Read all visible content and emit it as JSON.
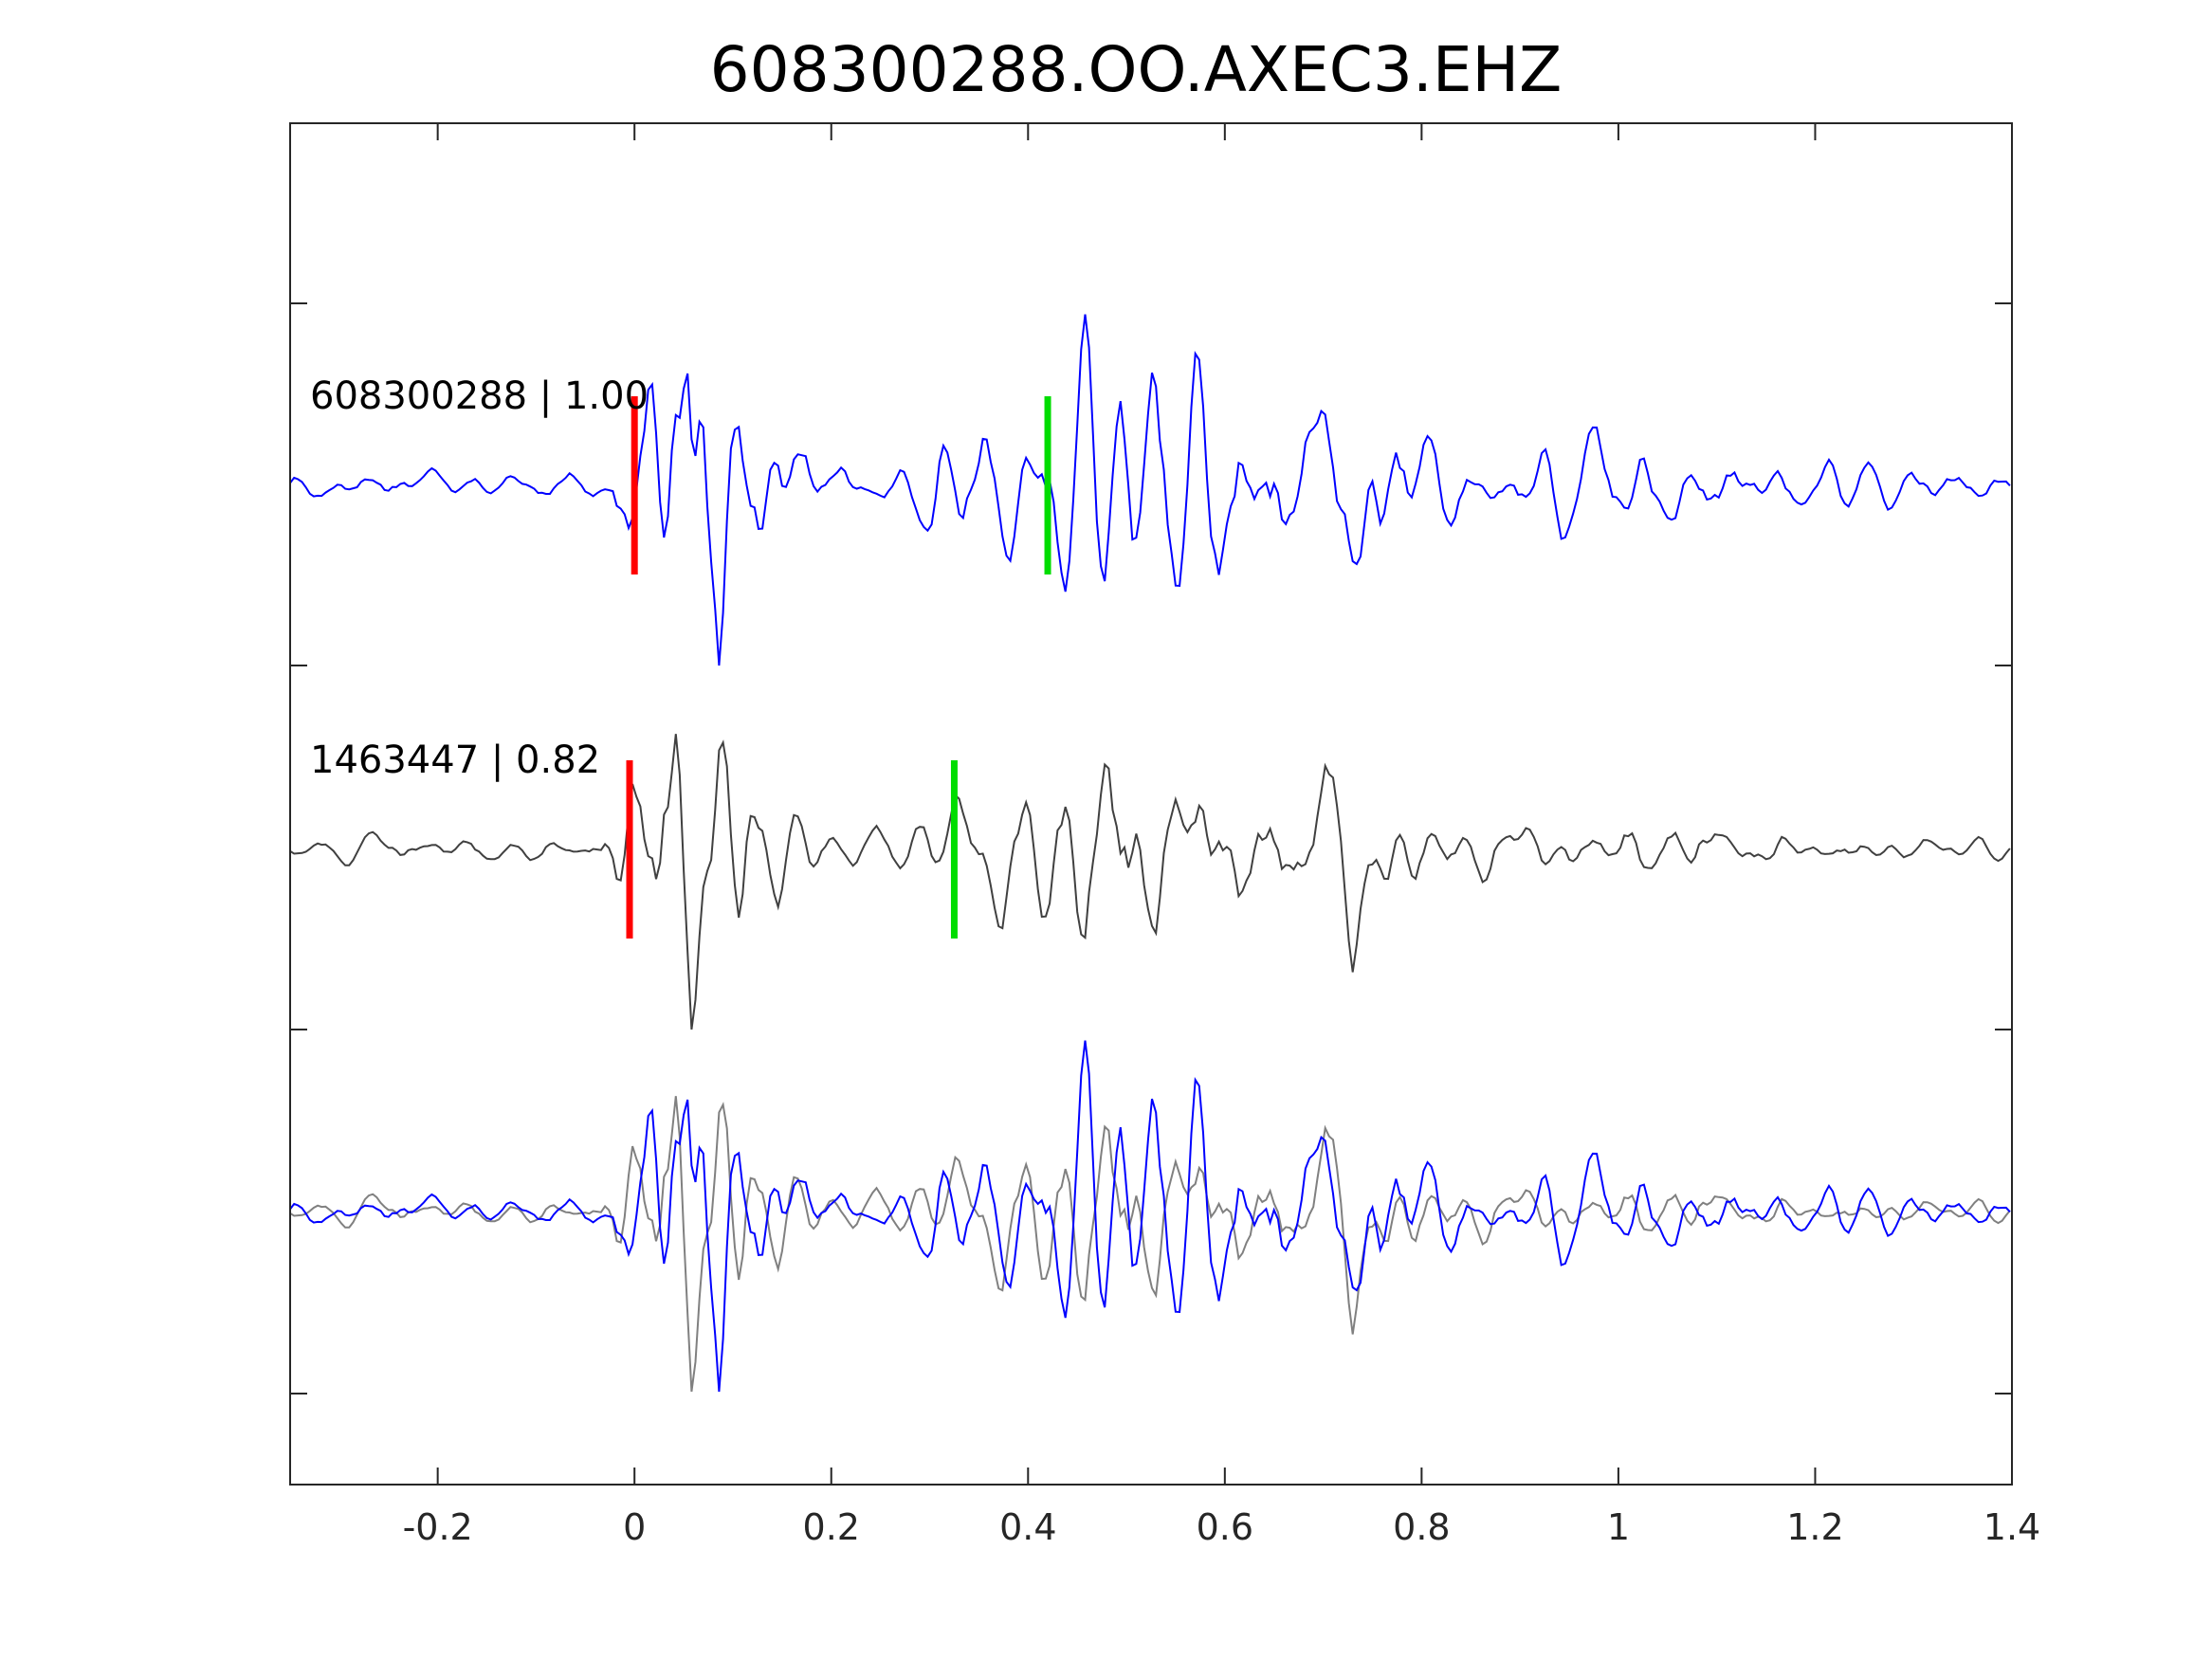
{
  "chart_data": {
    "type": "line",
    "title": "608300288.OO.AXEC3.EHZ",
    "xlabel": "",
    "ylabel": "",
    "xlim": [
      -0.35,
      1.4
    ],
    "x_ticks": [
      -0.2,
      0,
      0.2,
      0.4,
      0.6,
      0.8,
      1,
      1.2,
      1.4
    ],
    "x_tick_labels": [
      "-0.2",
      "0",
      "0.2",
      "0.4",
      "0.6",
      "0.8",
      "1",
      "1.2",
      "1.4"
    ],
    "y_ticks_count": 4,
    "grid": false,
    "legend": "none",
    "sample_interval": 0.004,
    "traces": [
      {
        "label": "608300288 | 1.00",
        "row": 0,
        "color": "#0000ff",
        "p_pick": 0.0,
        "s_pick": 0.42,
        "p_pick_color": "#ff0000",
        "s_pick_color": "#00dd00"
      },
      {
        "label": "1463447 | 0.82",
        "row": 1,
        "color": "#404040",
        "p_pick": -0.005,
        "s_pick": 0.325,
        "p_pick_color": "#ff0000",
        "s_pick_color": "#00dd00"
      },
      {
        "label": "",
        "row": 2,
        "overlay": true,
        "colors": [
          "#808080",
          "#0000ff"
        ]
      }
    ]
  }
}
